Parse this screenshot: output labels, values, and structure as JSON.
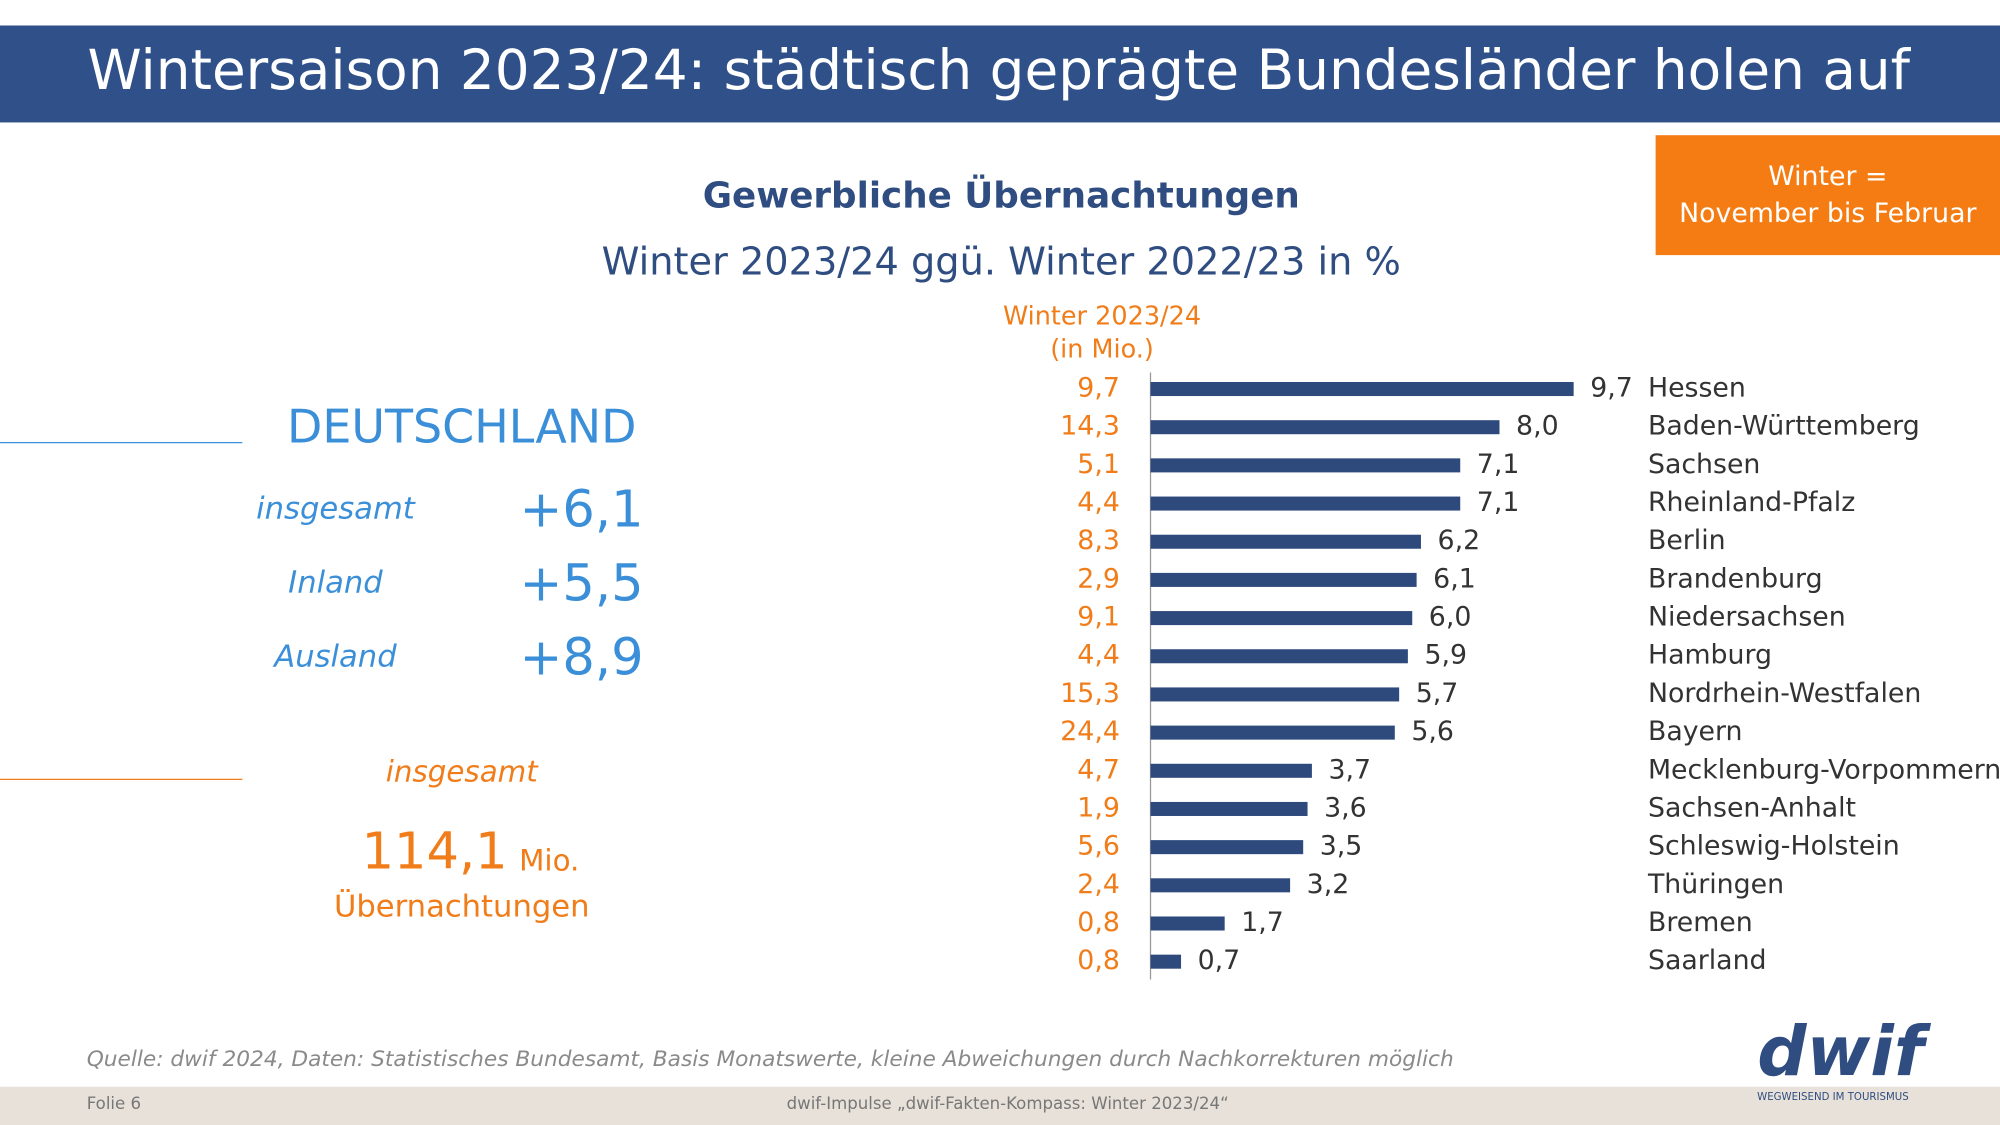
{
  "header": {
    "title": "Wintersaison 2023/24: städtisch geprägte Bundesländer holen auf"
  },
  "info_box": {
    "lines": [
      "Winter =",
      "November bis Februar"
    ]
  },
  "summary": {
    "title": "DEUTSCHLAND",
    "rows": [
      {
        "label": "insgesamt",
        "value": "+6,1"
      },
      {
        "label": "Inland",
        "value": "+5,5"
      },
      {
        "label": "Ausland",
        "value": "+8,9"
      }
    ],
    "total_label": "insgesamt",
    "total_value": "114,1",
    "total_unit": "Mio.",
    "total_caption": "Übernachtungen"
  },
  "chart_data": {
    "type": "bar",
    "orientation": "horizontal",
    "title": "Gewerbliche Übernachtungen",
    "subtitle": "Winter 2023/24 ggü. Winter 2022/23 in %",
    "categories": [
      "Hessen",
      "Baden-Württemberg",
      "Sachsen",
      "Rheinland-Pfalz",
      "Berlin",
      "Brandenburg",
      "Niedersachsen",
      "Hamburg",
      "Nordrhein-Westfalen",
      "Bayern",
      "Mecklenburg-Vorpommern",
      "Sachsen-Anhalt",
      "Schleswig-Holstein",
      "Thüringen",
      "Bremen",
      "Saarland"
    ],
    "values": [
      9.7,
      8.0,
      7.1,
      7.1,
      6.2,
      6.1,
      6.0,
      5.9,
      5.7,
      5.6,
      3.7,
      3.6,
      3.5,
      3.2,
      1.7,
      0.7
    ],
    "value_labels": [
      "9,7",
      "8,0",
      "7,1",
      "7,1",
      "6,2",
      "6,1",
      "6,0",
      "5,9",
      "5,7",
      "5,6",
      "3,7",
      "3,6",
      "3,5",
      "3,2",
      "1,7",
      "0,7"
    ],
    "color": "#2e4a7d",
    "xlim": [
      0,
      10
    ],
    "absolute": {
      "label": [
        "Winter 2023/24",
        "(in Mio.)"
      ],
      "values": [
        9.7,
        14.3,
        5.1,
        4.4,
        8.3,
        2.9,
        9.1,
        4.4,
        15.3,
        24.4,
        4.7,
        1.9,
        5.6,
        2.4,
        0.8,
        0.8
      ],
      "value_labels": [
        "9,7",
        "14,3",
        "5,1",
        "4,4",
        "8,3",
        "2,9",
        "9,1",
        "4,4",
        "15,3",
        "24,4",
        "4,7",
        "1,9",
        "5,6",
        "2,4",
        "0,8",
        "0,8"
      ]
    }
  },
  "footer": {
    "source": "Quelle: dwif 2024,  Daten: Statistisches Bundesamt, Basis Monatswerte, kleine Abweichungen durch Nachkorrekturen  möglich",
    "slide": "Folie 6",
    "center": "dwif-Impulse „dwif-Fakten-Kompass:  Winter 2023/24“",
    "logo": "dwif",
    "tagline": "WEGWEISEND IM TOURISMUS"
  }
}
